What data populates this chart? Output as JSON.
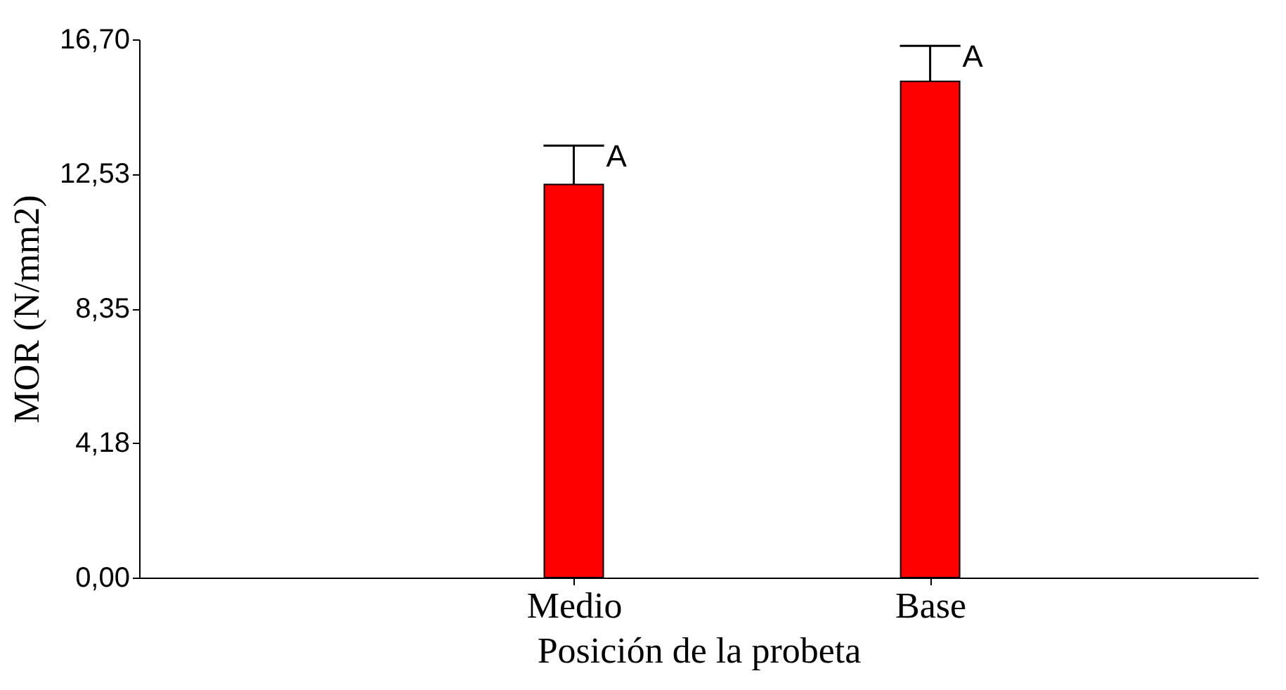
{
  "chart_data": {
    "type": "bar",
    "xlabel": "Posición de la probeta",
    "ylabel": "MOR (N/mm2)",
    "categories": [
      "Medio",
      "Base"
    ],
    "values": [
      12.2,
      15.4
    ],
    "color": "#ff0000",
    "errors": [
      [
        12.2,
        13.4
      ],
      [
        15.4,
        16.5
      ]
    ],
    "ylim": [
      0,
      16.7
    ],
    "yticks": [
      {
        "value": 0,
        "label": "0,00"
      },
      {
        "value": 4.18,
        "label": "4,18"
      },
      {
        "value": 8.35,
        "label": "8,35"
      },
      {
        "value": 12.53,
        "label": "12,53"
      },
      {
        "value": 16.7,
        "label": "16,70"
      }
    ],
    "annotations": [
      {
        "text": "A",
        "x": "Medio",
        "y": 13.4
      },
      {
        "text": "A",
        "x": "Base",
        "y": 16.5
      }
    ],
    "grid": false
  }
}
